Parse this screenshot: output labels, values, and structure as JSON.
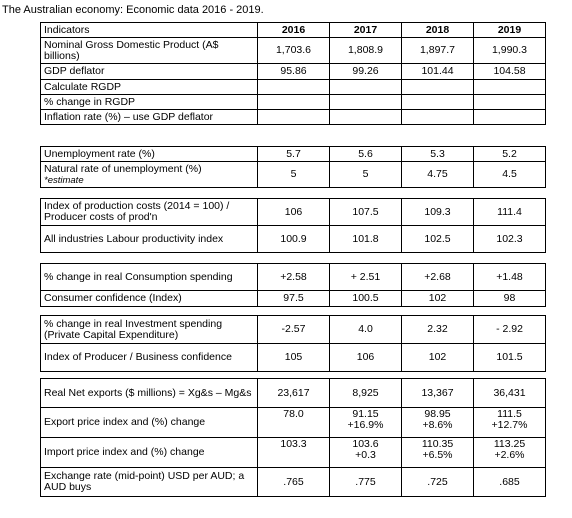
{
  "title": "The Australian economy:  Economic data 2016 - 2019.",
  "header": {
    "label": "Indicators",
    "years": [
      "2016",
      "2017",
      "2018",
      "2019"
    ]
  },
  "sections": [
    {
      "rows": [
        {
          "label": "Nominal Gross Domestic Product (A$ billions)",
          "values": [
            "1,703.6",
            "1,808.9",
            "1,897.7",
            "1,990.3"
          ]
        },
        {
          "label": "GDP deflator",
          "values": [
            "95.86",
            "99.26",
            "101.44",
            "104.58"
          ]
        },
        {
          "label": "Calculate RGDP",
          "values": [
            "",
            "",
            "",
            ""
          ]
        },
        {
          "label": "% change in RGDP",
          "values": [
            "",
            "",
            "",
            ""
          ]
        },
        {
          "label": "Inflation rate (%) – use GDP deflator",
          "values": [
            "",
            "",
            "",
            ""
          ]
        }
      ]
    },
    {
      "rows": [
        {
          "label": "Unemployment rate (%)",
          "values": [
            "5.7",
            "5.6",
            "5.3",
            "5.2"
          ]
        },
        {
          "label": "Natural rate of unemployment (%)",
          "sublabel": "*estimate",
          "values": [
            "5",
            "5",
            "4.75",
            "4.5"
          ]
        }
      ]
    },
    {
      "rows": [
        {
          "label": "Index of production costs (2014 = 100) / Producer costs of prod'n",
          "values": [
            "106",
            "107.5",
            "109.3",
            "111.4"
          ]
        },
        {
          "label": "All industries Labour productivity index",
          "values": [
            "100.9",
            "101.8",
            "102.5",
            "102.3"
          ]
        }
      ]
    },
    {
      "rows": [
        {
          "label": "% change in real Consumption spending",
          "values": [
            "+2.58",
            "+ 2.51",
            "+2.68",
            "+1.48"
          ]
        },
        {
          "label": "Consumer confidence (Index)",
          "values": [
            "97.5",
            "100.5",
            "102",
            "98"
          ]
        }
      ]
    },
    {
      "rows": [
        {
          "label": "% change in real Investment spending (Private Capital Expenditure)",
          "values": [
            "-2.57",
            "4.0",
            "2.32",
            "- 2.92"
          ]
        },
        {
          "label": "Index of Producer / Business confidence",
          "values": [
            "105",
            "106",
            "102",
            "101.5"
          ]
        }
      ]
    },
    {
      "rows": [
        {
          "label": "Real Net exports ($ millions) = Xg&s – Mg&s",
          "values": [
            "23,617",
            "8,925",
            "13,367",
            "36,431"
          ]
        },
        {
          "label": "Export price index and (%) change",
          "values": [
            "78.0",
            "91.15\n+16.9%",
            "98.95\n+8.6%",
            "111.5\n+12.7%"
          ]
        },
        {
          "label": "Import price index and (%) change",
          "values": [
            "103.3",
            "103.6\n+0.3",
            "110.35\n+6.5%",
            "113.25\n+2.6%"
          ]
        },
        {
          "label": "Exchange rate (mid-point) USD per AUD; a AUD buys",
          "values": [
            ".765",
            ".775",
            ".725",
            ".685"
          ]
        }
      ]
    }
  ]
}
